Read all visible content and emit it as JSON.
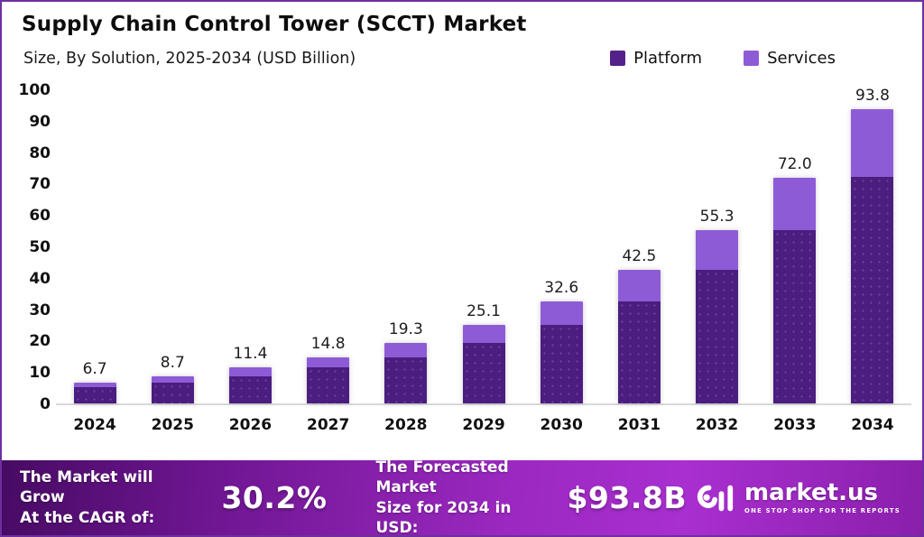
{
  "header": {
    "title": "Supply Chain Control Tower (SCCT) Market",
    "subtitle": "Size, By Solution, 2025-2034 (USD Billion)"
  },
  "legend": [
    {
      "label": "Platform",
      "color": "#54218a"
    },
    {
      "label": "Services",
      "color": "#8e5bd6"
    }
  ],
  "chart_data": {
    "type": "bar",
    "stacked": true,
    "title": "Supply Chain Control Tower (SCCT) Market",
    "subtitle": "Size, By Solution, 2025-2034 (USD Billion)",
    "xlabel": "",
    "ylabel": "USD Billion",
    "ylim": [
      0,
      100
    ],
    "ytick_step": 10,
    "grid": false,
    "legend_position": "top-right",
    "categories": [
      "2024",
      "2025",
      "2026",
      "2027",
      "2028",
      "2029",
      "2030",
      "2031",
      "2032",
      "2033",
      "2034"
    ],
    "series": [
      {
        "name": "Platform",
        "color": "#4a1d7f",
        "values": [
          5.2,
          6.7,
          8.7,
          11.4,
          14.8,
          19.3,
          25.1,
          32.6,
          42.5,
          55.3,
          72.0
        ]
      },
      {
        "name": "Services",
        "color": "#8e5bd6",
        "values": [
          1.5,
          2.0,
          2.7,
          3.4,
          4.5,
          5.8,
          7.5,
          9.9,
          12.8,
          16.7,
          21.8
        ]
      }
    ],
    "totals": [
      6.7,
      8.7,
      11.4,
      14.8,
      19.3,
      25.1,
      32.6,
      42.5,
      55.3,
      72.0,
      93.8
    ],
    "total_labels": [
      "6.7",
      "8.7",
      "11.4",
      "14.8",
      "19.3",
      "25.1",
      "32.6",
      "42.5",
      "55.3",
      "72.0",
      "93.8"
    ]
  },
  "footer": {
    "cagr_label": "The Market will Grow\nAt the CAGR of:",
    "cagr_value": "30.2%",
    "forecast_label": "The Forecasted Market\nSize for 2034 in USD:",
    "forecast_value": "$93.8B",
    "brand": "market.us",
    "brand_tagline": "ONE STOP SHOP FOR THE REPORTS"
  }
}
